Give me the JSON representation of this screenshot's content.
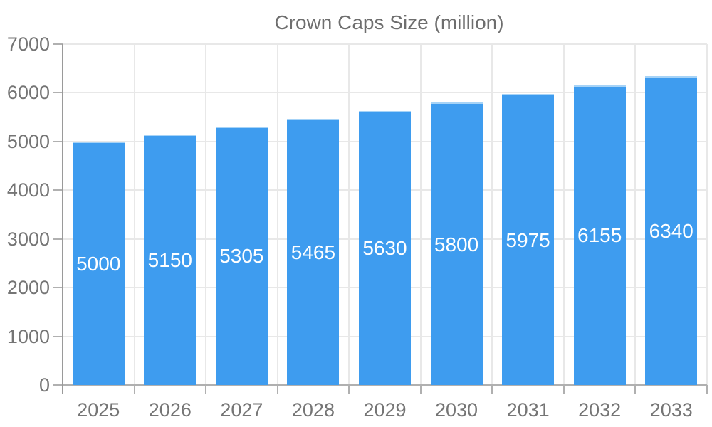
{
  "legend": {
    "label": "Crown Caps Size (million)"
  },
  "chart_data": {
    "type": "bar",
    "title": "",
    "legend_label": "Crown Caps Size (million)",
    "legend_position": "top",
    "categories": [
      "2025",
      "2026",
      "2027",
      "2028",
      "2029",
      "2030",
      "2031",
      "2032",
      "2033"
    ],
    "values": [
      5000,
      5150,
      5305,
      5465,
      5630,
      5800,
      5975,
      6155,
      6340
    ],
    "xlabel": "",
    "ylabel": "",
    "ylim": [
      0,
      7000
    ],
    "ytick_step": 1000,
    "ytick_labels": [
      "0",
      "1000",
      "2000",
      "3000",
      "4000",
      "5000",
      "6000",
      "7000"
    ],
    "grid": true,
    "bar_color": "#3e9cef",
    "bar_top_edge_color": "#a6d3f7",
    "bar_label_color": "#ffffff",
    "axis_text_color": "#757575",
    "legend_text_color": "#6e6e6e",
    "gridline_color": "#e8e8e8",
    "axis_line_color": "#9a9a9a"
  }
}
